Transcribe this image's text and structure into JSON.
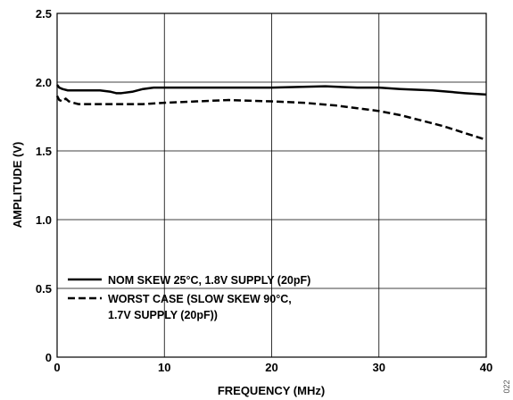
{
  "chart_data": {
    "type": "line",
    "title": "",
    "xlabel": "FREQUENCY (MHz)",
    "ylabel": "AMPLITUDE (V)",
    "xlim": [
      0,
      40
    ],
    "ylim": [
      0,
      2.5
    ],
    "x_ticks": [
      "0",
      "10",
      "20",
      "30",
      "40"
    ],
    "y_ticks": [
      "0",
      "0.5",
      "1.0",
      "1.5",
      "2.0",
      "2.5"
    ],
    "grid": true,
    "legend_position": "bottom-left",
    "series": [
      {
        "name": "NOM SKEW 25°C, 1.8V SUPPLY (20pF)",
        "style": "solid",
        "color": "#000000",
        "x": [
          0,
          0.2,
          0.5,
          1,
          2,
          3,
          4,
          5,
          5.5,
          6,
          7,
          8,
          9,
          10,
          12,
          15,
          20,
          25,
          28,
          30,
          32,
          35,
          38,
          40
        ],
        "y": [
          1.98,
          1.96,
          1.95,
          1.94,
          1.94,
          1.94,
          1.94,
          1.93,
          1.92,
          1.92,
          1.93,
          1.95,
          1.96,
          1.96,
          1.96,
          1.96,
          1.96,
          1.97,
          1.96,
          1.96,
          1.95,
          1.94,
          1.92,
          1.91
        ]
      },
      {
        "name": "WORST CASE (SLOW SKEW 90°C, 1.7V SUPPLY (20pF))",
        "style": "dashed",
        "color": "#000000",
        "x": [
          0,
          0.2,
          0.5,
          0.8,
          1.1,
          1.5,
          2,
          3,
          5,
          8,
          10,
          13,
          16,
          20,
          23,
          26,
          28,
          30,
          32,
          34,
          36,
          38,
          40
        ],
        "y": [
          1.9,
          1.87,
          1.86,
          1.88,
          1.86,
          1.85,
          1.84,
          1.84,
          1.84,
          1.84,
          1.85,
          1.86,
          1.87,
          1.86,
          1.85,
          1.83,
          1.81,
          1.79,
          1.76,
          1.72,
          1.68,
          1.63,
          1.58
        ]
      }
    ],
    "legend": {
      "solid_label": "NOM SKEW 25°C, 1.8V SUPPLY (20pF)",
      "dashed_label_line1": "WORST CASE (SLOW SKEW 90°C,",
      "dashed_label_line2": "1.7V SUPPLY (20pF))"
    },
    "figure_code": "022"
  }
}
